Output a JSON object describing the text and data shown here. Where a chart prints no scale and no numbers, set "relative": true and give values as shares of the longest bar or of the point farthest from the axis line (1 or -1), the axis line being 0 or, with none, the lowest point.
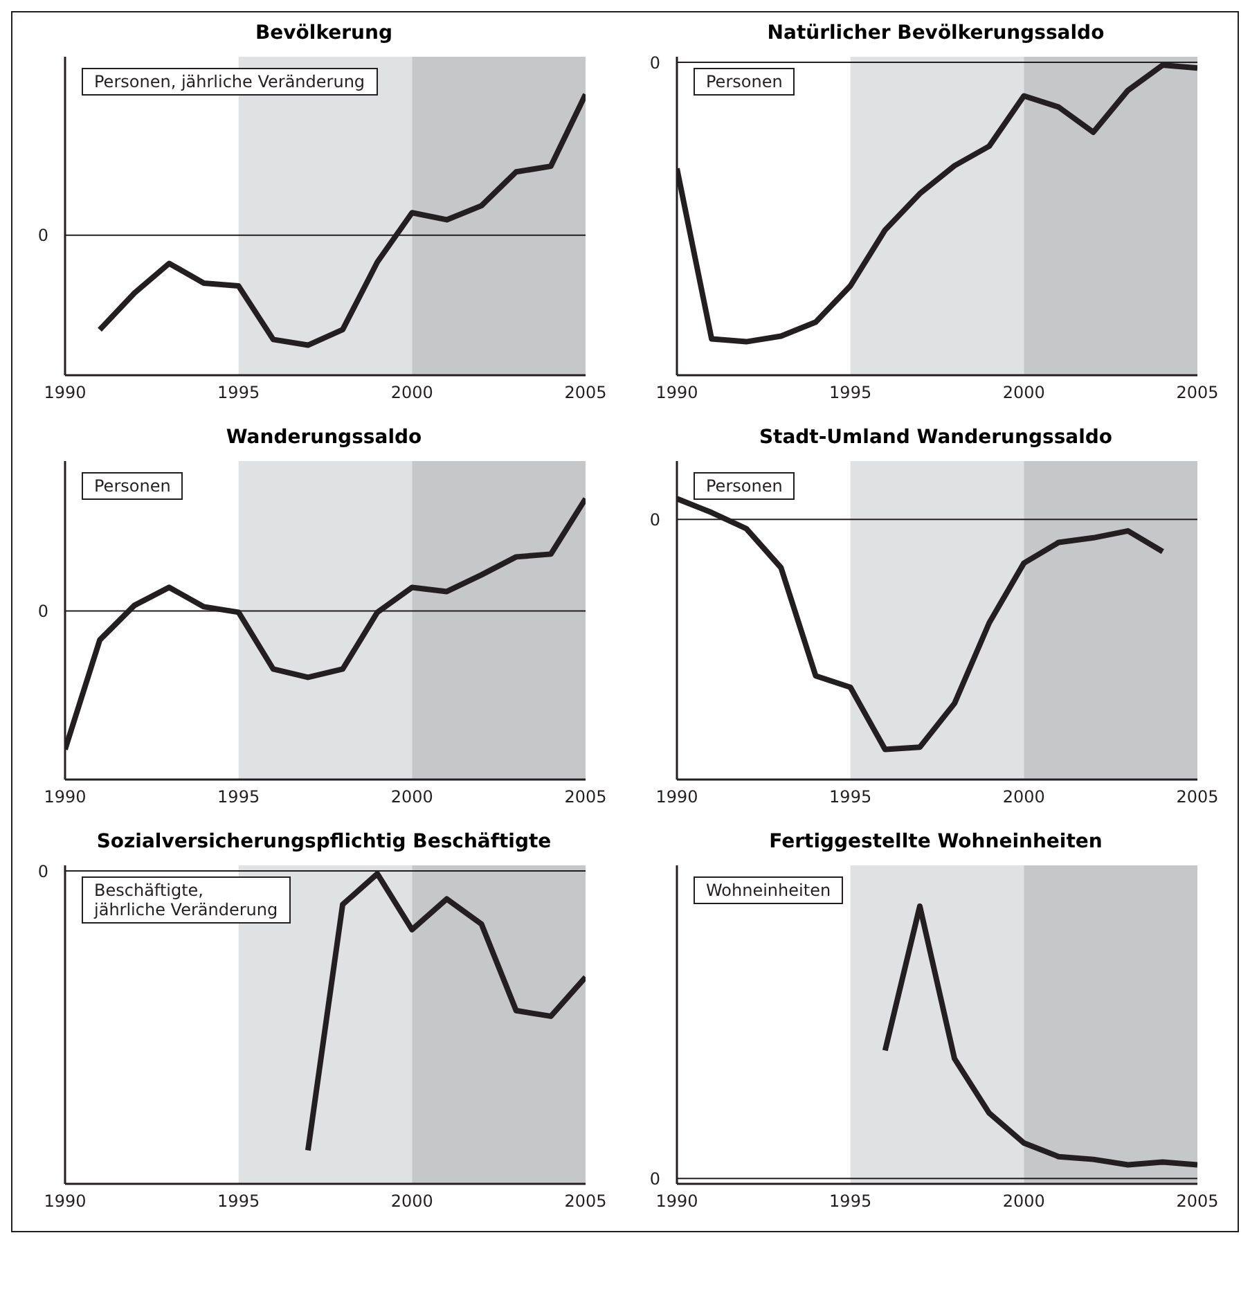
{
  "chart_data": [
    {
      "type": "line",
      "title": "Bevölkerung",
      "relative": true,
      "xlim": [
        1990,
        2005
      ],
      "xticks": [
        1990,
        1995,
        2000,
        2005
      ],
      "annotations": [
        "Personen, jährliche Veränderung"
      ],
      "series": [
        {
          "color": "#231f20",
          "x": [
            1991,
            1992,
            1993,
            1994,
            1995,
            1996,
            1997,
            1998,
            1999,
            2000,
            2001,
            2002,
            2003,
            2004,
            2005
          ],
          "values": [
            -0.67,
            -0.41,
            -0.2,
            -0.34,
            -0.36,
            -0.74,
            -0.78,
            -0.67,
            -0.19,
            0.16,
            0.11,
            0.21,
            0.45,
            0.49,
            1
          ]
        }
      ],
      "ref_lines": [
        {
          "axis": "y",
          "value": 0,
          "label": "0",
          "color": "#231f20"
        }
      ],
      "bands": [
        {
          "axis": "x",
          "from": 1995,
          "to": 2000,
          "color": "#e0e1e3"
        },
        {
          "axis": "x",
          "from": 2000,
          "to": 2005,
          "color": "#c6c7c9"
        }
      ]
    },
    {
      "type": "line",
      "title": "Natürlicher Bevölkerungssaldo",
      "relative": true,
      "xlim": [
        1990,
        2005
      ],
      "xticks": [
        1990,
        1995,
        2000,
        2005
      ],
      "annotations": [
        "Personen"
      ],
      "series": [
        {
          "color": "#231f20",
          "x": [
            1990,
            1991,
            1992,
            1993,
            1994,
            1995,
            1996,
            1997,
            1998,
            1999,
            2000,
            2001,
            2002,
            2003,
            2004,
            2005
          ],
          "values": [
            -0.38,
            -0.99,
            -1,
            -0.98,
            -0.93,
            -0.8,
            -0.6,
            -0.47,
            -0.37,
            -0.3,
            -0.12,
            -0.16,
            -0.25,
            -0.1,
            -0.01,
            -0.02
          ]
        }
      ],
      "ref_lines": [
        {
          "axis": "y",
          "value": 0,
          "label": "0",
          "color": "#231f20"
        }
      ],
      "bands": [
        {
          "axis": "x",
          "from": 1995,
          "to": 2000,
          "color": "#e0e1e3"
        },
        {
          "axis": "x",
          "from": 2000,
          "to": 2005,
          "color": "#c6c7c9"
        }
      ]
    },
    {
      "type": "line",
      "title": "Wanderungssaldo",
      "relative": true,
      "xlim": [
        1990,
        2005
      ],
      "xticks": [
        1990,
        1995,
        2000,
        2005
      ],
      "annotations": [
        "Personen"
      ],
      "series": [
        {
          "color": "#231f20",
          "x": [
            1990,
            1991,
            1992,
            1993,
            1994,
            1995,
            1996,
            1997,
            1998,
            1999,
            2000,
            2001,
            2002,
            2003,
            2004,
            2005
          ],
          "values": [
            -1,
            -0.21,
            0.04,
            0.17,
            0.03,
            -0.01,
            -0.42,
            -0.48,
            -0.42,
            -0.01,
            0.17,
            0.14,
            0.26,
            0.39,
            0.41,
            0.81
          ]
        }
      ],
      "ref_lines": [
        {
          "axis": "y",
          "value": 0,
          "label": "0",
          "color": "#231f20"
        }
      ],
      "bands": [
        {
          "axis": "x",
          "from": 1995,
          "to": 2000,
          "color": "#e0e1e3"
        },
        {
          "axis": "x",
          "from": 2000,
          "to": 2005,
          "color": "#c6c7c9"
        }
      ]
    },
    {
      "type": "line",
      "title": "Stadt-Umland Wanderungssaldo",
      "relative": true,
      "xlim": [
        1990,
        2005
      ],
      "xticks": [
        1990,
        1995,
        2000,
        2005
      ],
      "annotations": [
        "Personen"
      ],
      "series": [
        {
          "color": "#231f20",
          "x": [
            1990,
            1991,
            1992,
            1993,
            1994,
            1995,
            1996,
            1997,
            1998,
            1999,
            2000,
            2001,
            2002,
            2003,
            2004
          ],
          "values": [
            0.09,
            0.03,
            -0.04,
            -0.21,
            -0.68,
            -0.73,
            -1,
            -0.99,
            -0.8,
            -0.45,
            -0.19,
            -0.1,
            -0.08,
            -0.05,
            -0.14
          ]
        }
      ],
      "ref_lines": [
        {
          "axis": "y",
          "value": 0,
          "label": "0",
          "color": "#231f20"
        }
      ],
      "bands": [
        {
          "axis": "x",
          "from": 1995,
          "to": 2000,
          "color": "#e0e1e3"
        },
        {
          "axis": "x",
          "from": 2000,
          "to": 2005,
          "color": "#c6c7c9"
        }
      ]
    },
    {
      "type": "line",
      "title": "Sozialversicherungspflichtig Beschäftigte",
      "relative": true,
      "xlim": [
        1990,
        2005
      ],
      "xticks": [
        1990,
        1995,
        2000,
        2005
      ],
      "annotations": [
        "Beschäftigte,\njährliche Veränderung"
      ],
      "series": [
        {
          "color": "#231f20",
          "x": [
            1997,
            1998,
            1999,
            2000,
            2001,
            2002,
            2003,
            2004,
            2005
          ],
          "values": [
            -1,
            -0.12,
            -0.01,
            -0.21,
            -0.1,
            -0.19,
            -0.5,
            -0.52,
            -0.38
          ]
        }
      ],
      "ref_lines": [
        {
          "axis": "y",
          "value": 0,
          "label": "0",
          "color": "#231f20"
        }
      ],
      "bands": [
        {
          "axis": "x",
          "from": 1995,
          "to": 2000,
          "color": "#e0e1e3"
        },
        {
          "axis": "x",
          "from": 2000,
          "to": 2005,
          "color": "#c6c7c9"
        }
      ]
    },
    {
      "type": "line",
      "title": "Fertiggestellte Wohneinheiten",
      "relative": true,
      "xlim": [
        1990,
        2005
      ],
      "xticks": [
        1990,
        1995,
        2000,
        2005
      ],
      "annotations": [
        "Wohneinheiten"
      ],
      "series": [
        {
          "color": "#231f20",
          "x": [
            1996,
            1997,
            1998,
            1999,
            2000,
            2001,
            2002,
            2003,
            2004,
            2005
          ],
          "values": [
            0.47,
            1,
            0.44,
            0.24,
            0.13,
            0.08,
            0.07,
            0.05,
            0.06,
            0.05
          ]
        }
      ],
      "ref_lines": [
        {
          "axis": "y",
          "value": 0,
          "label": "0",
          "color": "#231f20"
        }
      ],
      "bands": [
        {
          "axis": "x",
          "from": 1995,
          "to": 2000,
          "color": "#e0e1e3"
        },
        {
          "axis": "x",
          "from": 2000,
          "to": 2005,
          "color": "#c6c7c9"
        }
      ]
    }
  ]
}
